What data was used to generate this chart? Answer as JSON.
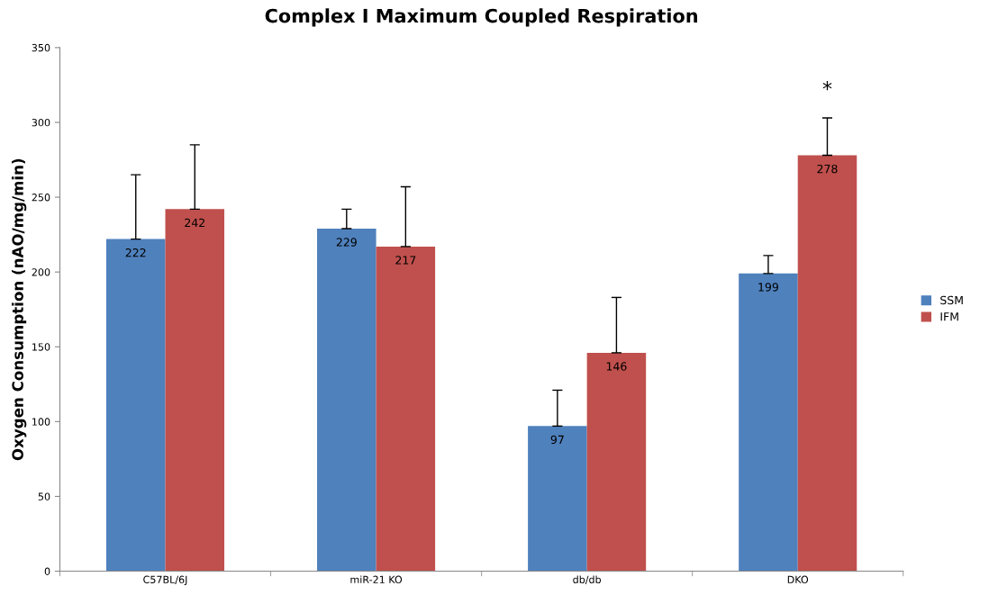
{
  "chart_data": {
    "type": "bar",
    "title": "Complex I Maximum Coupled Respiration",
    "ylabel": "Oxygen Consumption (nAO/mg/min)",
    "categories": [
      "C57BL/6J",
      "miR-21 KO",
      "db/db",
      "DKO"
    ],
    "series": [
      {
        "name": "SSM",
        "color": "#4f81bd",
        "values": [
          222,
          229,
          97,
          199
        ],
        "errors": [
          [
            222,
            265
          ],
          [
            229,
            242
          ],
          [
            97,
            121
          ],
          [
            199,
            211
          ]
        ]
      },
      {
        "name": "IFM",
        "color": "#c0504d",
        "values": [
          242,
          217,
          146,
          278
        ],
        "errors": [
          [
            242,
            285
          ],
          [
            217,
            257
          ],
          [
            146,
            183
          ],
          [
            278,
            303
          ]
        ]
      }
    ],
    "ylim": [
      0,
      350
    ],
    "yticks": [
      0,
      50,
      100,
      150,
      200,
      250,
      300,
      350
    ],
    "data_labels": true,
    "grid": false,
    "legend": "right",
    "annotations": [
      "*"
    ]
  }
}
